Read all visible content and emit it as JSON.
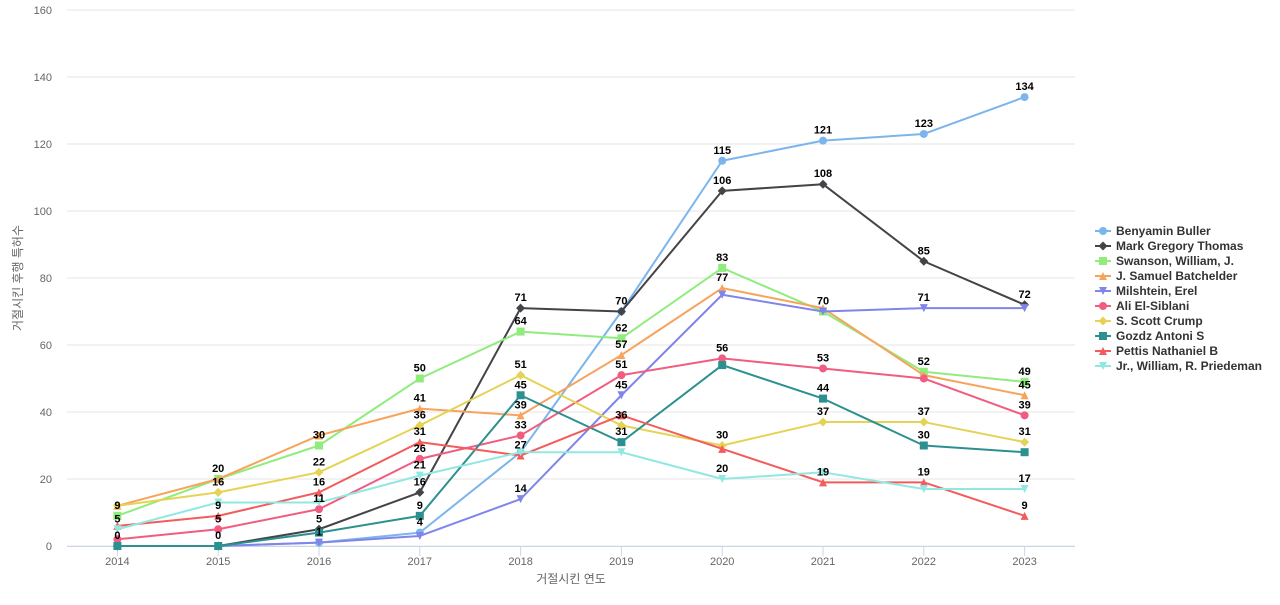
{
  "chart_data": {
    "type": "line",
    "title": "",
    "xlabel": "거절시킨 연도",
    "ylabel": "거절시킨 후행 특허수",
    "x": [
      2014,
      2015,
      2016,
      2017,
      2018,
      2019,
      2020,
      2021,
      2022,
      2023
    ],
    "ylim": [
      0,
      160
    ],
    "yticks": [
      0,
      20,
      40,
      60,
      80,
      100,
      120,
      140,
      160
    ],
    "grid": true,
    "legend_position": "right",
    "series": [
      {
        "name": "Benyamin Buller",
        "color": "#7cb5ec",
        "marker": "circle",
        "values": [
          0,
          0,
          1,
          4,
          28,
          70,
          115,
          121,
          123,
          134
        ]
      },
      {
        "name": "Mark Gregory Thomas",
        "color": "#434348",
        "marker": "diamond",
        "values": [
          0,
          0,
          5,
          16,
          71,
          70,
          106,
          108,
          85,
          72
        ]
      },
      {
        "name": "Swanson, William, J.",
        "color": "#90ed7d",
        "marker": "square",
        "values": [
          9,
          20,
          30,
          50,
          64,
          62,
          83,
          70,
          52,
          49
        ]
      },
      {
        "name": "J. Samuel Batchelder",
        "color": "#f7a35c",
        "marker": "triangle",
        "values": [
          12,
          20,
          33,
          41,
          39,
          57,
          77,
          71,
          51,
          45
        ]
      },
      {
        "name": "Milshtein, Erel",
        "color": "#8085e9",
        "marker": "triangle-down",
        "values": [
          0,
          0,
          1,
          3,
          14,
          45,
          75,
          70,
          71,
          71
        ]
      },
      {
        "name": "Ali El-Siblani",
        "color": "#f15c80",
        "marker": "circle",
        "values": [
          2,
          5,
          11,
          26,
          33,
          51,
          56,
          53,
          50,
          39
        ]
      },
      {
        "name": "S. Scott Crump",
        "color": "#e4d354",
        "marker": "diamond",
        "values": [
          12,
          16,
          22,
          36,
          51,
          36,
          30,
          37,
          37,
          31
        ]
      },
      {
        "name": "Gozdz Antoni S",
        "color": "#2b908f",
        "marker": "square",
        "values": [
          0,
          0,
          4,
          9,
          45,
          31,
          54,
          44,
          30,
          28
        ]
      },
      {
        "name": "Pettis Nathaniel B",
        "color": "#f45b5b",
        "marker": "triangle",
        "values": [
          6,
          9,
          16,
          31,
          27,
          39,
          29,
          19,
          19,
          9
        ]
      },
      {
        "name": "Jr., William, R. Priedeman",
        "color": "#91e8e1",
        "marker": "triangle-down",
        "values": [
          5,
          13,
          13,
          21,
          28,
          28,
          20,
          22,
          17,
          17
        ]
      }
    ],
    "data_labels": [
      {
        "x": 2014,
        "y": 9,
        "text": "9"
      },
      {
        "x": 2014,
        "y": 5,
        "text": "5"
      },
      {
        "x": 2014,
        "y": 0,
        "text": "0"
      },
      {
        "x": 2015,
        "y": 20,
        "text": "20"
      },
      {
        "x": 2015,
        "y": 16,
        "text": "16"
      },
      {
        "x": 2015,
        "y": 9,
        "text": "9"
      },
      {
        "x": 2015,
        "y": 5,
        "text": "5"
      },
      {
        "x": 2015,
        "y": 0,
        "text": "0"
      },
      {
        "x": 2016,
        "y": 30,
        "text": "30"
      },
      {
        "x": 2016,
        "y": 22,
        "text": "22"
      },
      {
        "x": 2016,
        "y": 16,
        "text": "16"
      },
      {
        "x": 2016,
        "y": 11,
        "text": "11"
      },
      {
        "x": 2016,
        "y": 5,
        "text": "5"
      },
      {
        "x": 2016,
        "y": 1,
        "text": "1"
      },
      {
        "x": 2017,
        "y": 50,
        "text": "50"
      },
      {
        "x": 2017,
        "y": 41,
        "text": "41"
      },
      {
        "x": 2017,
        "y": 36,
        "text": "36"
      },
      {
        "x": 2017,
        "y": 31,
        "text": "31"
      },
      {
        "x": 2017,
        "y": 26,
        "text": "26"
      },
      {
        "x": 2017,
        "y": 21,
        "text": "21"
      },
      {
        "x": 2017,
        "y": 16,
        "text": "16"
      },
      {
        "x": 2017,
        "y": 9,
        "text": "9"
      },
      {
        "x": 2017,
        "y": 4,
        "text": "4"
      },
      {
        "x": 2018,
        "y": 71,
        "text": "71"
      },
      {
        "x": 2018,
        "y": 64,
        "text": "64"
      },
      {
        "x": 2018,
        "y": 51,
        "text": "51"
      },
      {
        "x": 2018,
        "y": 45,
        "text": "45"
      },
      {
        "x": 2018,
        "y": 39,
        "text": "39"
      },
      {
        "x": 2018,
        "y": 33,
        "text": "33"
      },
      {
        "x": 2018,
        "y": 27,
        "text": "27"
      },
      {
        "x": 2018,
        "y": 14,
        "text": "14"
      },
      {
        "x": 2019,
        "y": 70,
        "text": "70"
      },
      {
        "x": 2019,
        "y": 62,
        "text": "62"
      },
      {
        "x": 2019,
        "y": 57,
        "text": "57"
      },
      {
        "x": 2019,
        "y": 51,
        "text": "51"
      },
      {
        "x": 2019,
        "y": 45,
        "text": "45"
      },
      {
        "x": 2019,
        "y": 36,
        "text": "36"
      },
      {
        "x": 2019,
        "y": 31,
        "text": "31"
      },
      {
        "x": 2020,
        "y": 115,
        "text": "115"
      },
      {
        "x": 2020,
        "y": 106,
        "text": "106"
      },
      {
        "x": 2020,
        "y": 83,
        "text": "83"
      },
      {
        "x": 2020,
        "y": 77,
        "text": "77"
      },
      {
        "x": 2020,
        "y": 56,
        "text": "56"
      },
      {
        "x": 2020,
        "y": 30,
        "text": "30"
      },
      {
        "x": 2020,
        "y": 20,
        "text": "20"
      },
      {
        "x": 2021,
        "y": 121,
        "text": "121"
      },
      {
        "x": 2021,
        "y": 108,
        "text": "108"
      },
      {
        "x": 2021,
        "y": 70,
        "text": "70"
      },
      {
        "x": 2021,
        "y": 53,
        "text": "53"
      },
      {
        "x": 2021,
        "y": 44,
        "text": "44"
      },
      {
        "x": 2021,
        "y": 37,
        "text": "37"
      },
      {
        "x": 2021,
        "y": 19,
        "text": "19"
      },
      {
        "x": 2022,
        "y": 123,
        "text": "123"
      },
      {
        "x": 2022,
        "y": 85,
        "text": "85"
      },
      {
        "x": 2022,
        "y": 71,
        "text": "71"
      },
      {
        "x": 2022,
        "y": 52,
        "text": "52"
      },
      {
        "x": 2022,
        "y": 37,
        "text": "37"
      },
      {
        "x": 2022,
        "y": 30,
        "text": "30"
      },
      {
        "x": 2022,
        "y": 19,
        "text": "19"
      },
      {
        "x": 2023,
        "y": 134,
        "text": "134"
      },
      {
        "x": 2023,
        "y": 72,
        "text": "72"
      },
      {
        "x": 2023,
        "y": 49,
        "text": "49"
      },
      {
        "x": 2023,
        "y": 45,
        "text": "45"
      },
      {
        "x": 2023,
        "y": 39,
        "text": "39"
      },
      {
        "x": 2023,
        "y": 31,
        "text": "31"
      },
      {
        "x": 2023,
        "y": 17,
        "text": "17"
      },
      {
        "x": 2023,
        "y": 9,
        "text": "9"
      }
    ]
  }
}
